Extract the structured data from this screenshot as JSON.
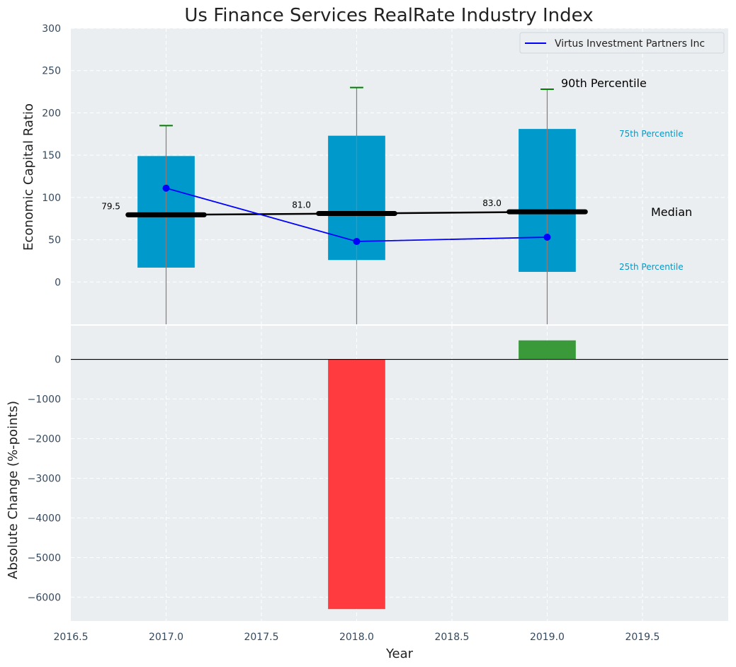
{
  "chart_data": {
    "type": "boxplot-with-line-and-bar",
    "title": "Us Finance Services RealRate Industry Index",
    "colors": {
      "box": "#0099cc",
      "median": "#000000",
      "whisker_cap": "#008000",
      "company_line": "#0000ff",
      "bar_negative": "#ff3b3f",
      "bar_positive": "#3a9a3a",
      "plot_bg": "#eaeef0"
    },
    "top_panel": {
      "ylabel": "Economic Capital Ratio",
      "ylim": [
        -50,
        300
      ],
      "yticks": [
        0,
        50,
        100,
        150,
        200,
        250,
        300
      ],
      "ytick_labels": [
        "0",
        "50",
        "100",
        "150",
        "200",
        "250",
        "300"
      ],
      "years": [
        2017,
        2018,
        2019
      ],
      "p25": [
        17,
        26,
        12
      ],
      "median": [
        79.5,
        81.0,
        83.0
      ],
      "median_labels": [
        "79.5",
        "81.0",
        "83.0"
      ],
      "p75": [
        149,
        173,
        181
      ],
      "p90": [
        185,
        230,
        228
      ],
      "company": {
        "name": "Virtus Investment Partners Inc",
        "values": [
          111,
          48,
          53
        ]
      },
      "annotations": {
        "p90": "90th Percentile",
        "p75": "75th Percentile",
        "median": "Median",
        "p25": "25th Percentile"
      }
    },
    "bottom_panel": {
      "ylabel": "Absolute Change (%-points)",
      "ylim": [
        -6600,
        850
      ],
      "yticks": [
        0,
        -1000,
        -2000,
        -3000,
        -4000,
        -5000,
        -6000
      ],
      "ytick_labels": [
        "0",
        "−1000",
        "−2000",
        "−3000",
        "−4000",
        "−5000",
        "−6000"
      ],
      "years": [
        2018,
        2019
      ],
      "values": [
        -6300,
        480
      ]
    },
    "xaxis": {
      "xlabel": "Year",
      "xlim": [
        2016.5,
        2019.95
      ],
      "xticks": [
        2016.5,
        2017.0,
        2017.5,
        2018.0,
        2018.5,
        2019.0,
        2019.5
      ],
      "xtick_labels": [
        "2016.5",
        "2017.0",
        "2017.5",
        "2018.0",
        "2018.5",
        "2019.0",
        "2019.5"
      ]
    }
  }
}
